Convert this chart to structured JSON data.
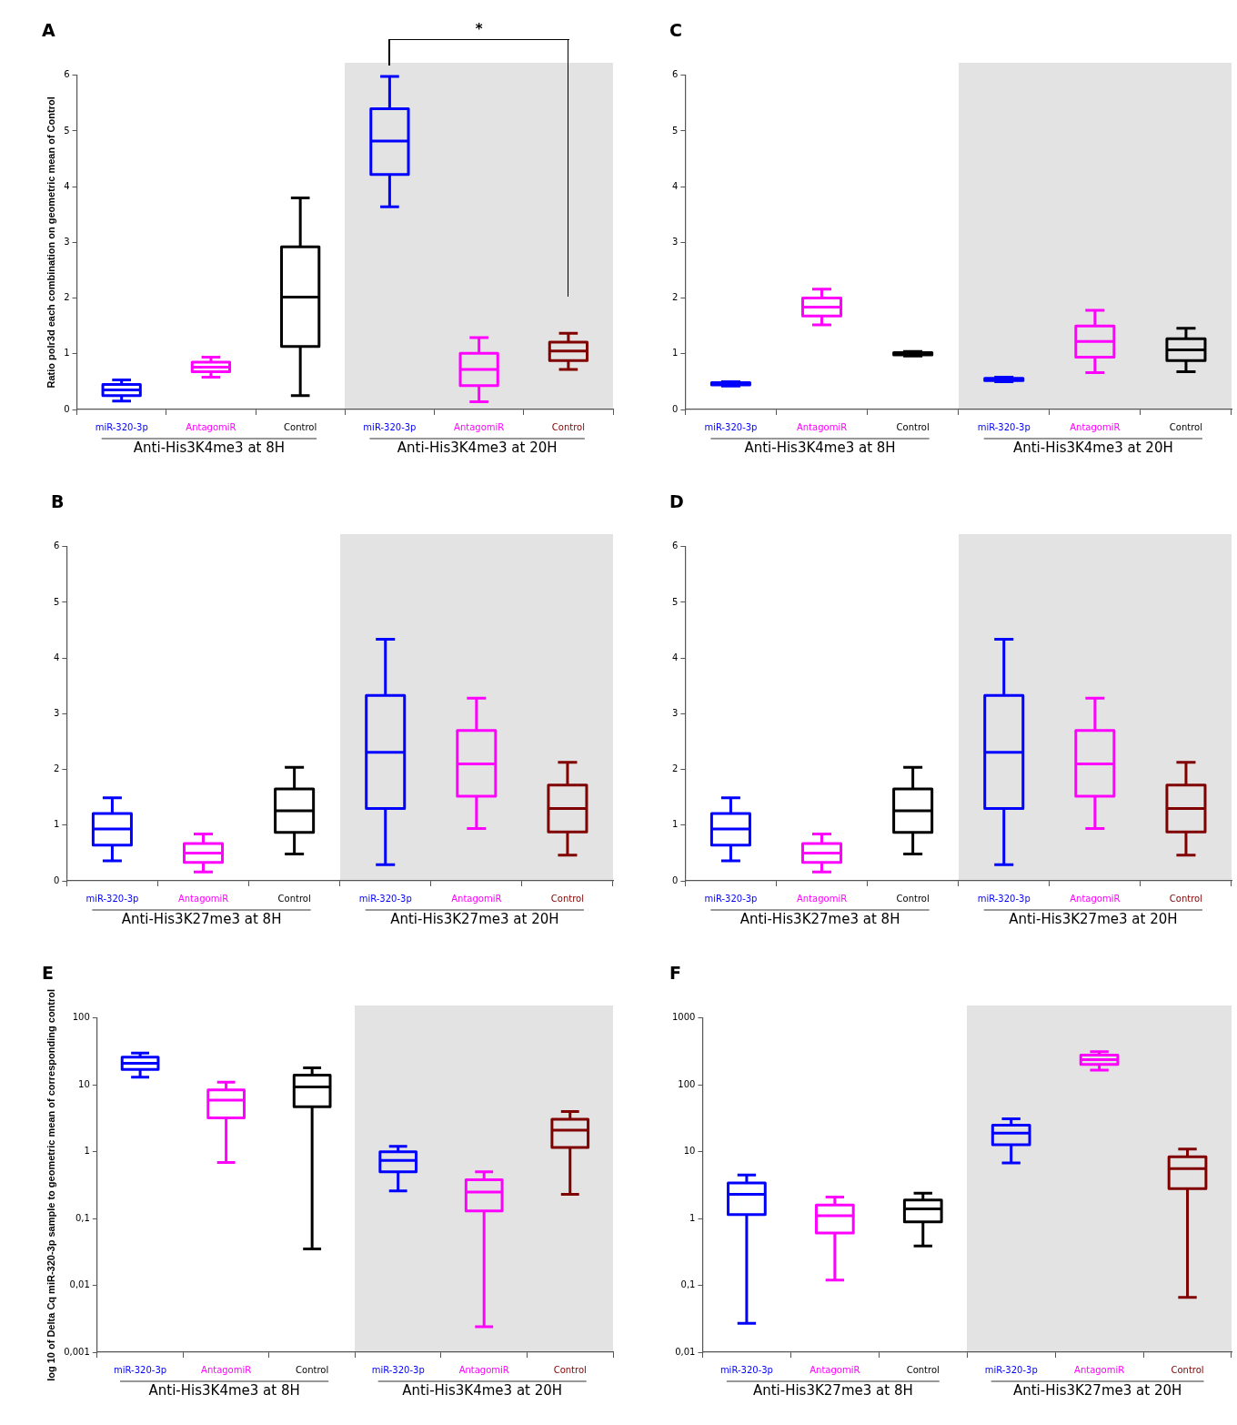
{
  "chart_data": [
    {
      "type": "box",
      "title": "A",
      "ylabel": "Ratio polr3d each combination on geometric mean of Control",
      "categories": [
        "miR-320-3p",
        "AntagomiR",
        "Control",
        "miR-320-3p",
        "AntagomiR",
        "Control"
      ],
      "colors": [
        "#0000ff",
        "#ff00ff",
        "#000000",
        "#0000ff",
        "#ff00ff",
        "#800000"
      ],
      "boxes": [
        {
          "low": 0.15,
          "q1": 0.25,
          "median": 0.35,
          "q3": 0.45,
          "high": 0.53
        },
        {
          "low": 0.58,
          "q1": 0.68,
          "median": 0.76,
          "q3": 0.85,
          "high": 0.94
        },
        {
          "low": 0.25,
          "q1": 1.13,
          "median": 2.02,
          "q3": 2.92,
          "high": 3.8
        },
        {
          "low": 3.64,
          "q1": 4.22,
          "median": 4.82,
          "q3": 5.4,
          "high": 5.98
        },
        {
          "low": 0.14,
          "q1": 0.43,
          "median": 0.72,
          "q3": 1.01,
          "high": 1.29
        },
        {
          "low": 0.72,
          "q1": 0.88,
          "median": 1.05,
          "q3": 1.21,
          "high": 1.37
        }
      ],
      "ylim": [
        0,
        6
      ],
      "yticks": [
        0,
        1,
        2,
        3,
        4,
        5,
        6
      ],
      "annotations": [
        "Anti-His3K4me3 at 8H",
        "Anti-His3K4me3 at 20H",
        "*"
      ]
    },
    {
      "type": "box",
      "title": "C",
      "categories": [
        "miR-320-3p",
        "AntagomiR",
        "Control",
        "miR-320-3p",
        "AntagomiR",
        "Control"
      ],
      "colors": [
        "#0000ff",
        "#ff00ff",
        "#000000",
        "#0000ff",
        "#ff00ff",
        "#000000"
      ],
      "boxes": [
        {
          "low": 0.42,
          "q1": 0.44,
          "median": 0.46,
          "q3": 0.48,
          "high": 0.5
        },
        {
          "low": 1.52,
          "q1": 1.68,
          "median": 1.84,
          "q3": 2.0,
          "high": 2.16
        },
        {
          "low": 0.96,
          "q1": 0.98,
          "median": 1.0,
          "q3": 1.02,
          "high": 1.04
        },
        {
          "low": 0.5,
          "q1": 0.52,
          "median": 0.54,
          "q3": 0.56,
          "high": 0.58
        },
        {
          "low": 0.66,
          "q1": 0.94,
          "median": 1.22,
          "q3": 1.5,
          "high": 1.78
        },
        {
          "low": 0.68,
          "q1": 0.88,
          "median": 1.07,
          "q3": 1.27,
          "high": 1.46
        }
      ],
      "ylim": [
        0,
        6
      ],
      "yticks": [
        0,
        1,
        2,
        3,
        4,
        5,
        6
      ],
      "annotations": [
        "Anti-His3K4me3 at 8H",
        "Anti-His3K4me3 at 20H"
      ]
    },
    {
      "type": "box",
      "title": "B",
      "categories": [
        "miR-320-3p",
        "AntagomiR",
        "Control",
        "miR-320-3p",
        "AntagomiR",
        "Control"
      ],
      "colors": [
        "#0000ff",
        "#ff00ff",
        "#000000",
        "#0000ff",
        "#ff00ff",
        "#800000"
      ],
      "boxes": [
        {
          "low": 0.36,
          "q1": 0.64,
          "median": 0.93,
          "q3": 1.21,
          "high": 1.49
        },
        {
          "low": 0.16,
          "q1": 0.33,
          "median": 0.5,
          "q3": 0.67,
          "high": 0.84
        },
        {
          "low": 0.48,
          "q1": 0.87,
          "median": 1.26,
          "q3": 1.65,
          "high": 2.04
        },
        {
          "low": 0.29,
          "q1": 1.3,
          "median": 2.31,
          "q3": 3.33,
          "high": 4.34
        },
        {
          "low": 0.94,
          "q1": 1.52,
          "median": 2.1,
          "q3": 2.7,
          "high": 3.28
        },
        {
          "low": 0.46,
          "q1": 0.88,
          "median": 1.3,
          "q3": 1.72,
          "high": 2.13
        }
      ],
      "ylim": [
        0,
        6
      ],
      "yticks": [
        0,
        1,
        2,
        3,
        4,
        5,
        6
      ],
      "annotations": [
        "Anti-His3K27me3 at 8H",
        "Anti-His3K27me3 at 20H"
      ]
    },
    {
      "type": "box",
      "title": "D",
      "categories": [
        "miR-320-3p",
        "AntagomiR",
        "Control",
        "miR-320-3p",
        "AntagomiR",
        "Control"
      ],
      "colors": [
        "#0000ff",
        "#ff00ff",
        "#000000",
        "#0000ff",
        "#ff00ff",
        "#800000"
      ],
      "boxes": [
        {
          "low": 0.36,
          "q1": 0.64,
          "median": 0.93,
          "q3": 1.21,
          "high": 1.49
        },
        {
          "low": 0.16,
          "q1": 0.33,
          "median": 0.5,
          "q3": 0.67,
          "high": 0.84
        },
        {
          "low": 0.48,
          "q1": 0.87,
          "median": 1.26,
          "q3": 1.65,
          "high": 2.04
        },
        {
          "low": 0.29,
          "q1": 1.3,
          "median": 2.31,
          "q3": 3.33,
          "high": 4.34
        },
        {
          "low": 0.94,
          "q1": 1.52,
          "median": 2.1,
          "q3": 2.7,
          "high": 3.28
        },
        {
          "low": 0.46,
          "q1": 0.88,
          "median": 1.3,
          "q3": 1.72,
          "high": 2.13
        }
      ],
      "ylim": [
        0,
        6
      ],
      "yticks": [
        0,
        1,
        2,
        3,
        4,
        5,
        6
      ],
      "annotations": [
        "Anti-His3K27me3 at 8H",
        "Anti-His3K27me3 at 20H"
      ]
    },
    {
      "type": "box",
      "title": "E",
      "ylabel": "log 10 of Delta Cq miR-320-3p sample to geometric mean of corresponding control",
      "categories": [
        "miR-320-3p",
        "AntagomiR",
        "Control",
        "miR-320-3p",
        "AntagomiR",
        "Control"
      ],
      "colors": [
        "#0000ff",
        "#ff00ff",
        "#000000",
        "#0000ff",
        "#ff00ff",
        "#800000"
      ],
      "boxes": [
        {
          "low": 13,
          "q1": 17,
          "median": 21,
          "q3": 26,
          "high": 30
        },
        {
          "low": 0.69,
          "q1": 3.2,
          "median": 5.9,
          "q3": 8.4,
          "high": 11
        },
        {
          "low": 0.035,
          "q1": 4.7,
          "median": 9.3,
          "q3": 14,
          "high": 18
        },
        {
          "low": 0.26,
          "q1": 0.5,
          "median": 0.74,
          "q3": 1.0,
          "high": 1.2
        },
        {
          "low": 0.0024,
          "q1": 0.13,
          "median": 0.25,
          "q3": 0.38,
          "high": 0.5
        },
        {
          "low": 0.23,
          "q1": 1.16,
          "median": 2.1,
          "q3": 3.05,
          "high": 4.0
        }
      ],
      "log": "y",
      "ylim": [
        0.001,
        100
      ],
      "yticks": [
        {
          "value": 0.001,
          "label": "0,001"
        },
        {
          "value": 0.01,
          "label": "0,01"
        },
        {
          "value": 0.1,
          "label": "0,1"
        },
        1,
        10,
        100
      ],
      "annotations": [
        "Anti-His3K4me3 at 8H",
        "Anti-His3K4me3 at 20H"
      ]
    },
    {
      "type": "box",
      "title": "F",
      "categories": [
        "miR-320-3p",
        "AntagomiR",
        "Control",
        "miR-320-3p",
        "AntagomiR",
        "Control"
      ],
      "colors": [
        "#0000ff",
        "#ff00ff",
        "#000000",
        "#0000ff",
        "#ff00ff",
        "#800000"
      ],
      "boxes": [
        {
          "low": 0.027,
          "q1": 1.15,
          "median": 2.3,
          "q3": 3.4,
          "high": 4.5
        },
        {
          "low": 0.12,
          "q1": 0.61,
          "median": 1.1,
          "q3": 1.6,
          "high": 2.1
        },
        {
          "low": 0.39,
          "q1": 0.89,
          "median": 1.4,
          "q3": 1.9,
          "high": 2.4
        },
        {
          "low": 6.8,
          "q1": 12.7,
          "median": 19,
          "q3": 25,
          "high": 31
        },
        {
          "low": 166,
          "q1": 202,
          "median": 238,
          "q3": 280,
          "high": 315
        },
        {
          "low": 0.066,
          "q1": 2.8,
          "median": 5.6,
          "q3": 8.4,
          "high": 11
        }
      ],
      "log": "y",
      "ylim": [
        0.01,
        1000
      ],
      "yticks": [
        {
          "value": 0.01,
          "label": "0,01"
        },
        {
          "value": 0.1,
          "label": "0,1"
        },
        1,
        10,
        100,
        1000
      ],
      "annotations": [
        "Anti-His3K27me3 at 8H",
        "Anti-His3K27me3 at 20H"
      ]
    }
  ]
}
